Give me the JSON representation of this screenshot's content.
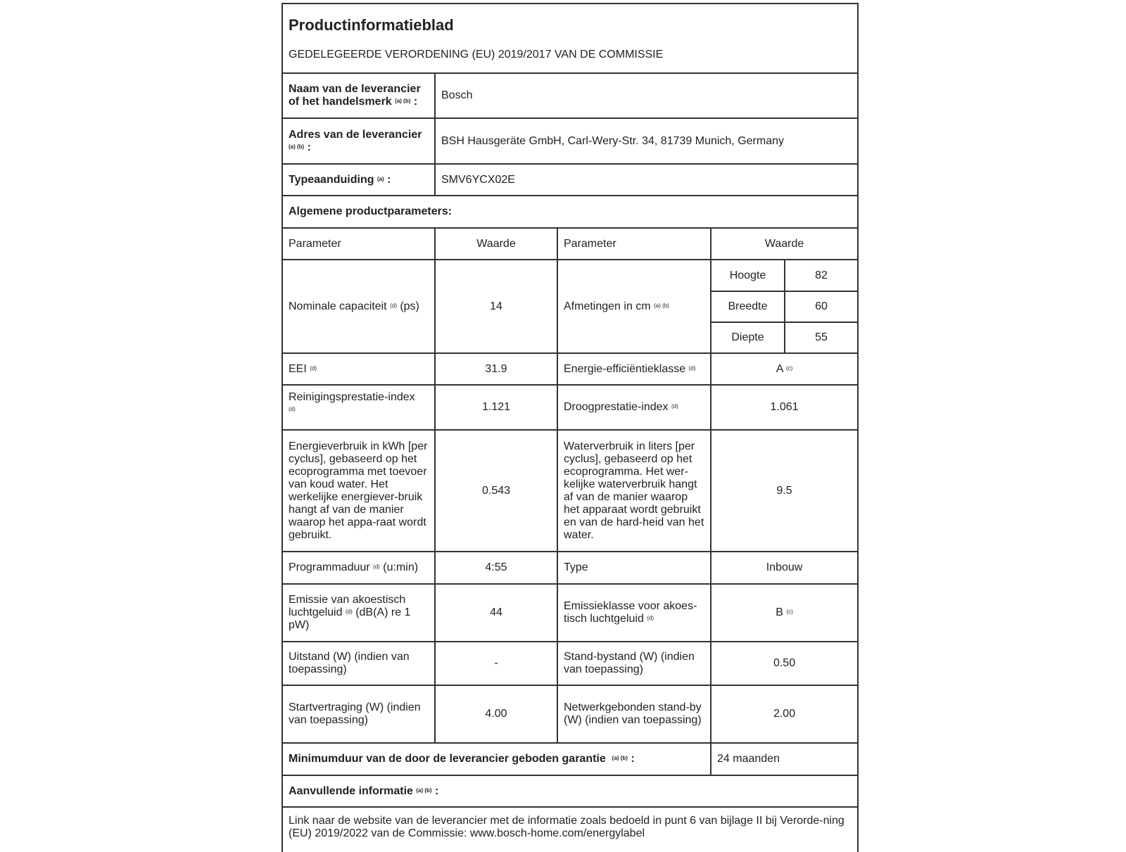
{
  "title": "Productinformatieblad",
  "subtitle": "GEDELEGEERDE VERORDENING (EU) 2019/2017 VAN DE COMMISSIE",
  "supplier": {
    "label": "Naam van de leverancier of het handelsmerk",
    "note": "(a) (b)",
    "suffix": ":",
    "value": "Bosch"
  },
  "address": {
    "label": "Adres van de leverancier",
    "note": "(a) (b)",
    "suffix": ":",
    "value": "BSH Hausgeräte GmbH, Carl-Wery-Str. 34, 81739 Munich, Germany"
  },
  "model": {
    "label": "Typeaanduiding",
    "note": "(a)",
    "suffix": ":",
    "value": "SMV6YCX02E"
  },
  "general_header": "Algemene productparameters:",
  "columns": {
    "param1": "Parameter",
    "value1": "Waarde",
    "param2": "Parameter",
    "value2": "Waarde"
  },
  "capacity": {
    "label": "Nominale capaciteit",
    "note": "(d)",
    "unit": "(ps)",
    "value": "14"
  },
  "dimensions": {
    "label": "Afmetingen in cm",
    "note": "(a) (b)",
    "height_label": "Hoogte",
    "height": "82",
    "width_label": "Breedte",
    "width": "60",
    "depth_label": "Diepte",
    "depth": "55"
  },
  "eei": {
    "label": "EEI",
    "note": "(d)",
    "value": "31.9"
  },
  "energy_class": {
    "label": "Energie-efficiëntieklasse",
    "note": "(d)",
    "value": "A",
    "value_note": "(c)"
  },
  "cleaning": {
    "label": "Reinigingsprestatie-index",
    "note": "(d)",
    "value": "1.121"
  },
  "drying": {
    "label": "Droogprestatie-index",
    "note": "(d)",
    "value": "1.061"
  },
  "energy": {
    "label": "Energieverbruik in kWh [per cyclus], gebaseerd op het ecoprogramma met toevoer van koud water. Het werkelijke energiever-bruik hangt af van de manier waarop het appa-raat wordt gebruikt.",
    "value": "0.543"
  },
  "water": {
    "label": "Waterverbruik in liters [per cyclus], gebaseerd op het ecoprogramma. Het wer-kelijke waterverbruik hangt af van de manier waarop het apparaat wordt gebruikt en van de hard-heid van het water.",
    "value": "9.5"
  },
  "duration": {
    "label": "Programmaduur",
    "note": "(d)",
    "unit": "(u:min)",
    "value": "4:55"
  },
  "type": {
    "label": "Type",
    "value": "Inbouw"
  },
  "noise": {
    "label1": "Emissie van akoestisch luchtgeluid",
    "note": "(d)",
    "label2": "(dB(A) re 1 pW)",
    "value": "44"
  },
  "noise_class": {
    "label": "Emissieklasse voor akoes-tisch luchtgeluid",
    "note": "(d)",
    "value": "B",
    "value_note": "(c)"
  },
  "off": {
    "label": "Uitstand (W) (indien van toepassing)",
    "value": "-"
  },
  "standby": {
    "label": "Stand-bystand (W) (indien van toepassing)",
    "value": "0.50"
  },
  "delay": {
    "label": "Startvertraging (W) (indien van toepassing)",
    "value": "4.00"
  },
  "network": {
    "label": "Netwerkgebonden stand-by (W) (indien van toepassing)",
    "value": "2.00"
  },
  "warranty": {
    "label": "Minimumduur van de door de leverancier geboden garantie",
    "note": "(a) (b)",
    "suffix": ":",
    "value": "24 maanden"
  },
  "additional": {
    "label": "Aanvullende informatie",
    "note": "(a) (b)",
    "suffix": ":"
  },
  "link_text": "Link naar de website van de leverancier met de informatie zoals bedoeld in punt 6 van bijlage II bij Verorde-ning (EU) 2019/2022 van de Commissie: www.bosch-home.com/energylabel"
}
